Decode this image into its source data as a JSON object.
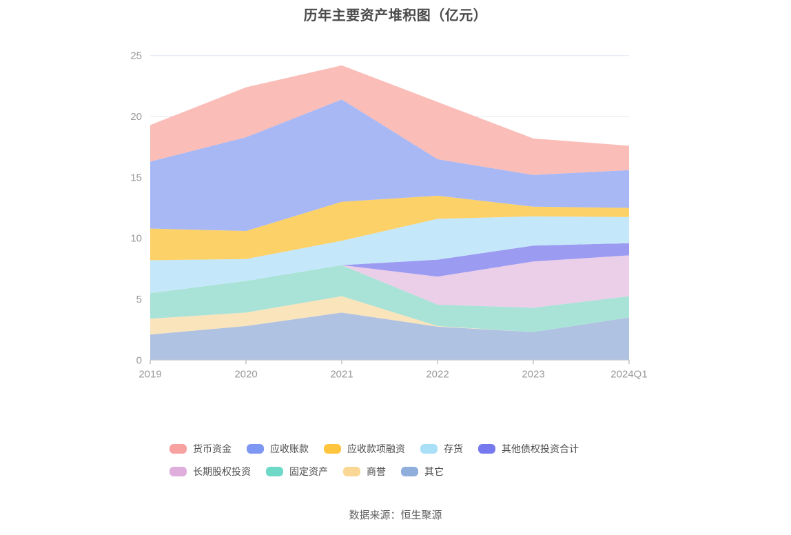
{
  "title": "历年主要资产堆积图（亿元）",
  "source": "数据来源：恒生聚源",
  "chart_data": {
    "type": "area",
    "stacked": true,
    "title": "历年主要资产堆积图（亿元）",
    "x": [
      "2019",
      "2020",
      "2021",
      "2022",
      "2023",
      "2024Q1"
    ],
    "xlabel": "",
    "ylabel": "",
    "ylim": [
      0,
      25
    ],
    "y_ticks": [
      0,
      5,
      10,
      15,
      20,
      25
    ],
    "grid": true,
    "legend_position": "bottom",
    "stack_order_bottom_to_top": [
      "其它",
      "商誉",
      "固定资产",
      "长期股权投资",
      "其他债权投资合计",
      "存货",
      "应收款项融资",
      "应收账款",
      "货币资金"
    ],
    "series": [
      {
        "name": "货币资金",
        "color": "#F7A1A0",
        "area_color": "#FABDB8",
        "values": [
          3.0,
          4.1,
          2.8,
          4.7,
          3.0,
          2.0
        ]
      },
      {
        "name": "应收账款",
        "color": "#7E97F3",
        "area_color": "#A7B8F5",
        "values": [
          5.5,
          7.7,
          8.4,
          3.0,
          2.6,
          3.1
        ]
      },
      {
        "name": "应收款项融资",
        "color": "#FFC53E",
        "area_color": "#FCD168",
        "values": [
          2.6,
          2.3,
          3.2,
          1.9,
          0.8,
          0.75
        ]
      },
      {
        "name": "存货",
        "color": "#A9DFF7",
        "area_color": "#C4E7FA",
        "values": [
          2.7,
          1.8,
          2.0,
          3.35,
          2.4,
          2.15
        ]
      },
      {
        "name": "其他债权投资合计",
        "color": "#7678EE",
        "area_color": "#9C9BF2",
        "values": [
          0,
          0,
          0,
          1.4,
          1.3,
          1.0
        ]
      },
      {
        "name": "长期股权投资",
        "color": "#DFAEDD",
        "area_color": "#EBCEE8",
        "values": [
          0,
          0,
          0,
          2.3,
          3.8,
          3.35
        ]
      },
      {
        "name": "固定资产",
        "color": "#6FD9C8",
        "area_color": "#A9E2D7",
        "values": [
          2.1,
          2.6,
          2.55,
          1.75,
          2.0,
          1.75
        ]
      },
      {
        "name": "商誉",
        "color": "#FAD794",
        "area_color": "#FAE4BC",
        "values": [
          1.3,
          1.1,
          1.35,
          0.05,
          0,
          0
        ]
      },
      {
        "name": "其它",
        "color": "#8FAEDC",
        "area_color": "#AFC2E2",
        "values": [
          2.1,
          2.8,
          3.9,
          2.75,
          2.3,
          3.5
        ]
      }
    ],
    "axis_colors": {
      "grid_line": "#E2E8F2",
      "axis_line": "#CBCBCB",
      "tick": "#A6A6A6",
      "label": "#999999"
    }
  }
}
